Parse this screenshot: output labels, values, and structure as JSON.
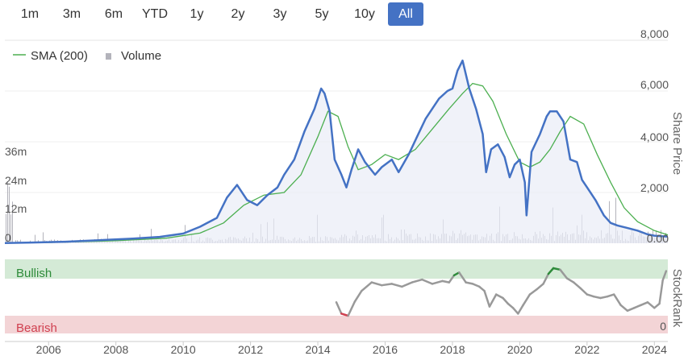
{
  "range_selector": {
    "buttons": [
      "1m",
      "3m",
      "6m",
      "YTD",
      "1y",
      "2y",
      "3y",
      "5y",
      "10y",
      "All"
    ],
    "active": "All"
  },
  "colors": {
    "price": "#4472c4",
    "sma": "#4caf50",
    "volume": "#b3b3bb",
    "area": "#e9ecf6",
    "bullish_band": "#d4ead6",
    "bearish_band": "#f3d4d6",
    "bullish_text": "#2e8b3a",
    "bearish_text": "#d04050",
    "rank_neutral": "#999999",
    "rank_bull": "#2e8b3a",
    "rank_bear": "#d04050"
  },
  "chart_data": [
    {
      "type": "line",
      "title": "",
      "legend": [
        "SMA (200)",
        "Volume"
      ],
      "legend_position": "top-left",
      "xlabel": "",
      "x_ticks": [
        "2006",
        "2008",
        "2010",
        "2012",
        "2014",
        "2016",
        "2018",
        "2020",
        "2022",
        "2024"
      ],
      "xlim": [
        2004.7,
        2024.4
      ],
      "ylabel": "Share Price",
      "y_ticks": [
        "8,000",
        "6,000",
        "4,000",
        "2,000",
        "0.00"
      ],
      "ylim": [
        0,
        8000
      ],
      "volume_label_ticks": [
        "36m",
        "24m",
        "12m",
        "0"
      ],
      "volume_ylim": [
        0,
        48
      ],
      "grid": true,
      "series": [
        {
          "name": "Share Price",
          "x": [
            2004.7,
            2005.5,
            2006.5,
            2007.5,
            2008.5,
            2009.3,
            2010.0,
            2010.5,
            2011.0,
            2011.3,
            2011.6,
            2011.9,
            2012.2,
            2012.5,
            2012.8,
            2013.0,
            2013.3,
            2013.6,
            2013.9,
            2014.1,
            2014.2,
            2014.35,
            2014.5,
            2014.7,
            2014.85,
            2015.0,
            2015.2,
            2015.4,
            2015.7,
            2015.9,
            2016.2,
            2016.4,
            2016.7,
            2016.95,
            2017.2,
            2017.4,
            2017.6,
            2017.85,
            2018.0,
            2018.15,
            2018.3,
            2018.5,
            2018.7,
            2018.9,
            2019.0,
            2019.15,
            2019.35,
            2019.55,
            2019.7,
            2019.85,
            2020.0,
            2020.15,
            2020.2,
            2020.35,
            2020.6,
            2020.8,
            2020.9,
            2021.1,
            2021.3,
            2021.5,
            2021.7,
            2021.85,
            2022.0,
            2022.25,
            2022.5,
            2022.7,
            2022.9,
            2023.2,
            2023.5,
            2023.8,
            2024.0,
            2024.2,
            2024.4
          ],
          "y": [
            10,
            30,
            60,
            120,
            180,
            250,
            380,
            650,
            1000,
            1800,
            2300,
            1700,
            1500,
            1900,
            2200,
            2700,
            3300,
            4400,
            5300,
            6100,
            5900,
            5200,
            3300,
            2700,
            2200,
            2900,
            3700,
            3200,
            2700,
            3000,
            3300,
            2800,
            3500,
            4200,
            4900,
            5300,
            5700,
            6000,
            6100,
            6800,
            7200,
            6100,
            5300,
            4300,
            2800,
            3700,
            3900,
            3400,
            2600,
            3100,
            3300,
            2400,
            1100,
            3600,
            4300,
            5000,
            5200,
            5200,
            4800,
            3300,
            3200,
            2500,
            2200,
            1700,
            1100,
            800,
            700,
            600,
            500,
            350,
            300,
            280,
            260
          ]
        },
        {
          "name": "SMA (200)",
          "x": [
            2004.7,
            2006.0,
            2008.0,
            2009.5,
            2010.5,
            2011.2,
            2011.8,
            2012.4,
            2013.0,
            2013.5,
            2014.0,
            2014.3,
            2014.6,
            2014.9,
            2015.2,
            2015.6,
            2016.0,
            2016.4,
            2016.9,
            2017.4,
            2017.9,
            2018.3,
            2018.6,
            2018.9,
            2019.2,
            2019.6,
            2020.0,
            2020.3,
            2020.6,
            2020.9,
            2021.2,
            2021.5,
            2021.9,
            2022.3,
            2022.7,
            2023.1,
            2023.5,
            2024.0,
            2024.4
          ],
          "y": [
            10,
            30,
            100,
            200,
            400,
            800,
            1500,
            1900,
            2000,
            2700,
            4200,
            5200,
            5000,
            3800,
            2900,
            3100,
            3500,
            3300,
            3700,
            4500,
            5300,
            5900,
            6300,
            6200,
            5600,
            4300,
            3200,
            3000,
            3200,
            3700,
            4400,
            5000,
            4700,
            3500,
            2400,
            1400,
            850,
            500,
            330
          ]
        }
      ]
    },
    {
      "type": "line",
      "title": "",
      "ylabel": "StockRank",
      "y_ticks": [
        "0"
      ],
      "ylim": [
        0,
        100
      ],
      "band_labels": [
        "Bullish",
        "Bearish"
      ],
      "bands": {
        "bullish_min": 80,
        "bearish_max": 20
      },
      "series": [
        {
          "name": "StockRank",
          "x": [
            2014.55,
            2014.7,
            2014.9,
            2015.1,
            2015.3,
            2015.6,
            2015.9,
            2016.2,
            2016.5,
            2016.8,
            2017.1,
            2017.4,
            2017.7,
            2017.9,
            2018.05,
            2018.2,
            2018.4,
            2018.6,
            2018.8,
            2018.95,
            2019.1,
            2019.3,
            2019.5,
            2019.65,
            2019.8,
            2019.95,
            2020.1,
            2020.3,
            2020.5,
            2020.7,
            2020.85,
            2021.0,
            2021.2,
            2021.4,
            2021.6,
            2021.8,
            2022.0,
            2022.2,
            2022.4,
            2022.6,
            2022.8,
            2023.0,
            2023.2,
            2023.4,
            2023.6,
            2023.8,
            2024.0,
            2024.15,
            2024.25,
            2024.35
          ],
          "y": [
            44,
            28,
            25,
            45,
            60,
            72,
            68,
            70,
            66,
            72,
            76,
            70,
            74,
            72,
            82,
            86,
            72,
            70,
            66,
            60,
            38,
            55,
            50,
            42,
            36,
            28,
            40,
            55,
            62,
            70,
            84,
            92,
            90,
            78,
            72,
            64,
            55,
            52,
            50,
            52,
            55,
            40,
            32,
            36,
            40,
            44,
            36,
            42,
            75,
            88
          ]
        }
      ]
    }
  ]
}
